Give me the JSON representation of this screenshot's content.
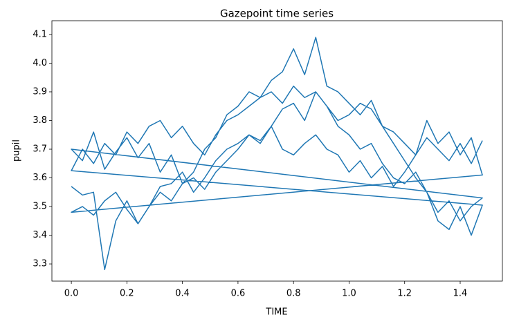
{
  "chart_data": {
    "type": "line",
    "title": "Gazepoint time series",
    "x_label": "TIME",
    "y_label": "pupil",
    "xlim": [
      -0.07,
      1.552
    ],
    "ylim": [
      3.24,
      4.148
    ],
    "xticks": [
      {
        "value": 0,
        "label": "0.0"
      },
      0.2,
      0.4,
      0.6,
      0.8,
      {
        "value": 1,
        "label": "1.0"
      },
      1.2,
      1.4
    ],
    "yticks": [
      3.3,
      3.4,
      3.5,
      3.6,
      3.7,
      3.8,
      3.9,
      {
        "value": 4,
        "label": "4.0"
      },
      4.1
    ],
    "grid": false,
    "x": [
      0,
      0.04,
      0.08,
      0.12,
      0.16,
      0.2,
      0.24,
      0.28,
      0.32,
      0.36,
      0.4,
      0.44,
      0.48,
      0.52,
      0.56,
      0.6,
      0.64,
      0.68,
      0.72,
      0.76,
      0.8,
      0.84,
      0.88,
      0.92,
      0.96,
      1.0,
      1.04,
      1.08,
      1.12,
      1.16,
      1.2,
      1.24,
      1.28,
      1.32,
      1.36,
      1.4,
      1.44,
      1.48,
      0,
      0.04,
      0.08,
      0.12,
      0.16,
      0.2,
      0.24,
      0.28,
      0.32,
      0.36,
      0.4,
      0.44,
      0.48,
      0.52,
      0.56,
      0.6,
      0.64,
      0.68,
      0.72,
      0.76,
      0.8,
      0.84,
      0.88,
      0.92,
      0.96,
      1.0,
      1.04,
      1.08,
      1.12,
      1.16,
      1.2,
      1.24,
      1.28,
      1.32,
      1.36,
      1.4,
      1.44,
      1.48,
      0,
      0.04,
      0.08,
      0.12,
      0.16,
      0.2,
      0.24,
      0.28,
      0.32,
      0.36,
      0.4,
      0.44,
      0.48,
      0.52,
      0.56,
      0.6,
      0.64,
      0.68,
      0.72,
      0.76,
      0.8,
      0.84,
      0.88,
      0.92,
      0.96,
      1.0,
      1.04,
      1.08,
      1.12,
      1.16,
      1.2,
      1.24,
      1.28,
      1.32,
      1.36,
      1.4,
      1.44,
      1.48,
      0,
      0.04,
      0.08,
      0.12,
      0.16,
      0.2,
      0.24,
      0.28,
      0.32,
      0.36,
      0.4,
      0.44,
      0.48,
      0.52,
      0.56,
      0.6,
      0.64,
      0.68,
      0.72,
      0.76,
      0.8,
      0.84,
      0.88,
      0.92,
      0.96,
      1.0,
      1.04,
      1.08,
      1.12,
      1.16,
      1.2,
      1.24,
      1.28,
      1.32,
      1.36,
      1.4,
      1.44,
      1.48
    ],
    "series": [
      {
        "color": "#1f77b4",
        "values": [
          3.57,
          3.54,
          3.55,
          3.28,
          3.45,
          3.52,
          3.44,
          3.5,
          3.55,
          3.52,
          3.58,
          3.6,
          3.56,
          3.62,
          3.66,
          3.7,
          3.75,
          3.72,
          3.78,
          3.84,
          3.86,
          3.8,
          3.9,
          3.85,
          3.78,
          3.75,
          3.7,
          3.72,
          3.65,
          3.6,
          3.58,
          3.62,
          3.55,
          3.48,
          3.52,
          3.45,
          3.5,
          3.53,
          3.7,
          3.66,
          3.76,
          3.63,
          3.69,
          3.74,
          3.67,
          3.72,
          3.62,
          3.68,
          3.58,
          3.62,
          3.7,
          3.74,
          3.82,
          3.85,
          3.9,
          3.88,
          3.94,
          3.97,
          4.05,
          3.96,
          4.09,
          3.92,
          3.9,
          3.86,
          3.82,
          3.87,
          3.78,
          3.72,
          3.66,
          3.6,
          3.55,
          3.45,
          3.42,
          3.5,
          3.4,
          3.505,
          3.625,
          3.7,
          3.65,
          3.72,
          3.68,
          3.76,
          3.72,
          3.78,
          3.8,
          3.74,
          3.78,
          3.72,
          3.68,
          3.75,
          3.8,
          3.82,
          3.85,
          3.88,
          3.9,
          3.86,
          3.92,
          3.88,
          3.9,
          3.85,
          3.8,
          3.82,
          3.86,
          3.84,
          3.78,
          3.76,
          3.72,
          3.68,
          3.8,
          3.72,
          3.76,
          3.68,
          3.74,
          3.61,
          3.48,
          3.5,
          3.47,
          3.52,
          3.55,
          3.49,
          3.44,
          3.5,
          3.57,
          3.58,
          3.62,
          3.55,
          3.6,
          3.66,
          3.7,
          3.72,
          3.75,
          3.73,
          3.78,
          3.7,
          3.68,
          3.72,
          3.75,
          3.7,
          3.68,
          3.62,
          3.66,
          3.6,
          3.64,
          3.57,
          3.62,
          3.68,
          3.74,
          3.7,
          3.66,
          3.72,
          3.65,
          3.73
        ]
      }
    ]
  }
}
